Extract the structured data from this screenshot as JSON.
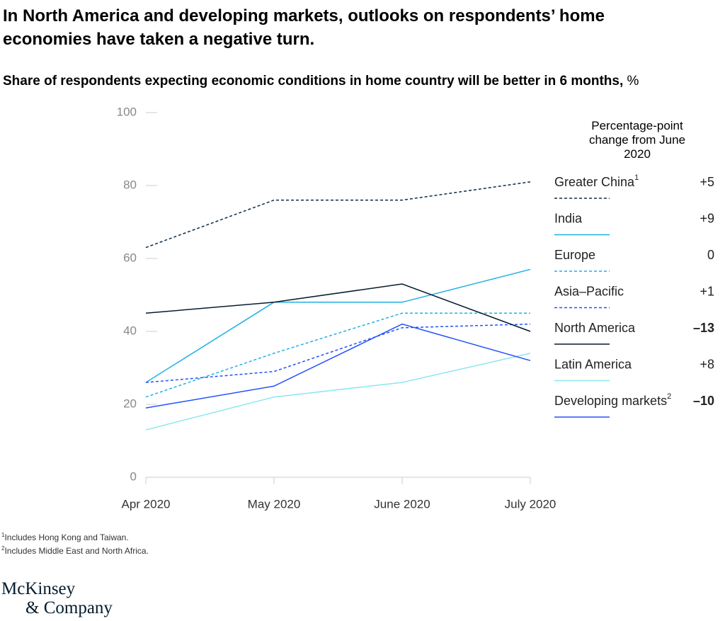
{
  "chart_data": {
    "type": "line",
    "title": "In North America and developing markets, outlooks on respondents’ home economies have taken a negative turn.",
    "subtitle": "Share of respondents expecting economic conditions in home country will be better in 6 months,",
    "unit": "%",
    "legend_title": "Percentage-point change from June 2020",
    "categories": [
      "Apr 2020",
      "May 2020",
      "June 2020",
      "July 2020"
    ],
    "ylim": [
      0,
      100
    ],
    "yticks": [
      0,
      20,
      40,
      60,
      80,
      100
    ],
    "series": [
      {
        "name": "Greater China",
        "footnote_mark": "1",
        "color": "#0b2a4a",
        "dashed": true,
        "values": [
          63,
          76,
          76,
          81
        ],
        "change": "+5"
      },
      {
        "name": "India",
        "color": "#1fb0e6",
        "dashed": false,
        "values": [
          26,
          48,
          48,
          57
        ],
        "change": "+9"
      },
      {
        "name": "Europe",
        "color": "#1fb0e6",
        "dashed": true,
        "values": [
          22,
          34,
          45,
          45
        ],
        "change": "0"
      },
      {
        "name": "Asia–Pacific",
        "color": "#2251ff",
        "dashed": true,
        "values": [
          26,
          29,
          41,
          42
        ],
        "change": "+1"
      },
      {
        "name": "North America",
        "color": "#051c2c",
        "dashed": false,
        "values": [
          45,
          48,
          53,
          40
        ],
        "change": "–13",
        "bold": true
      },
      {
        "name": "Latin America",
        "color": "#8de6f0",
        "dashed": false,
        "values": [
          13,
          22,
          26,
          34
        ],
        "change": "+8"
      },
      {
        "name": "Developing markets",
        "footnote_mark": "2",
        "color": "#2251ff",
        "dashed": false,
        "values": [
          19,
          25,
          42,
          32
        ],
        "change": "–10",
        "bold": true
      }
    ],
    "footnotes": [
      {
        "mark": "1",
        "text": "Includes Hong Kong and Taiwan."
      },
      {
        "mark": "2",
        "text": "Includes Middle East and North Africa."
      }
    ],
    "logo": [
      "McKinsey",
      "& Company"
    ]
  }
}
